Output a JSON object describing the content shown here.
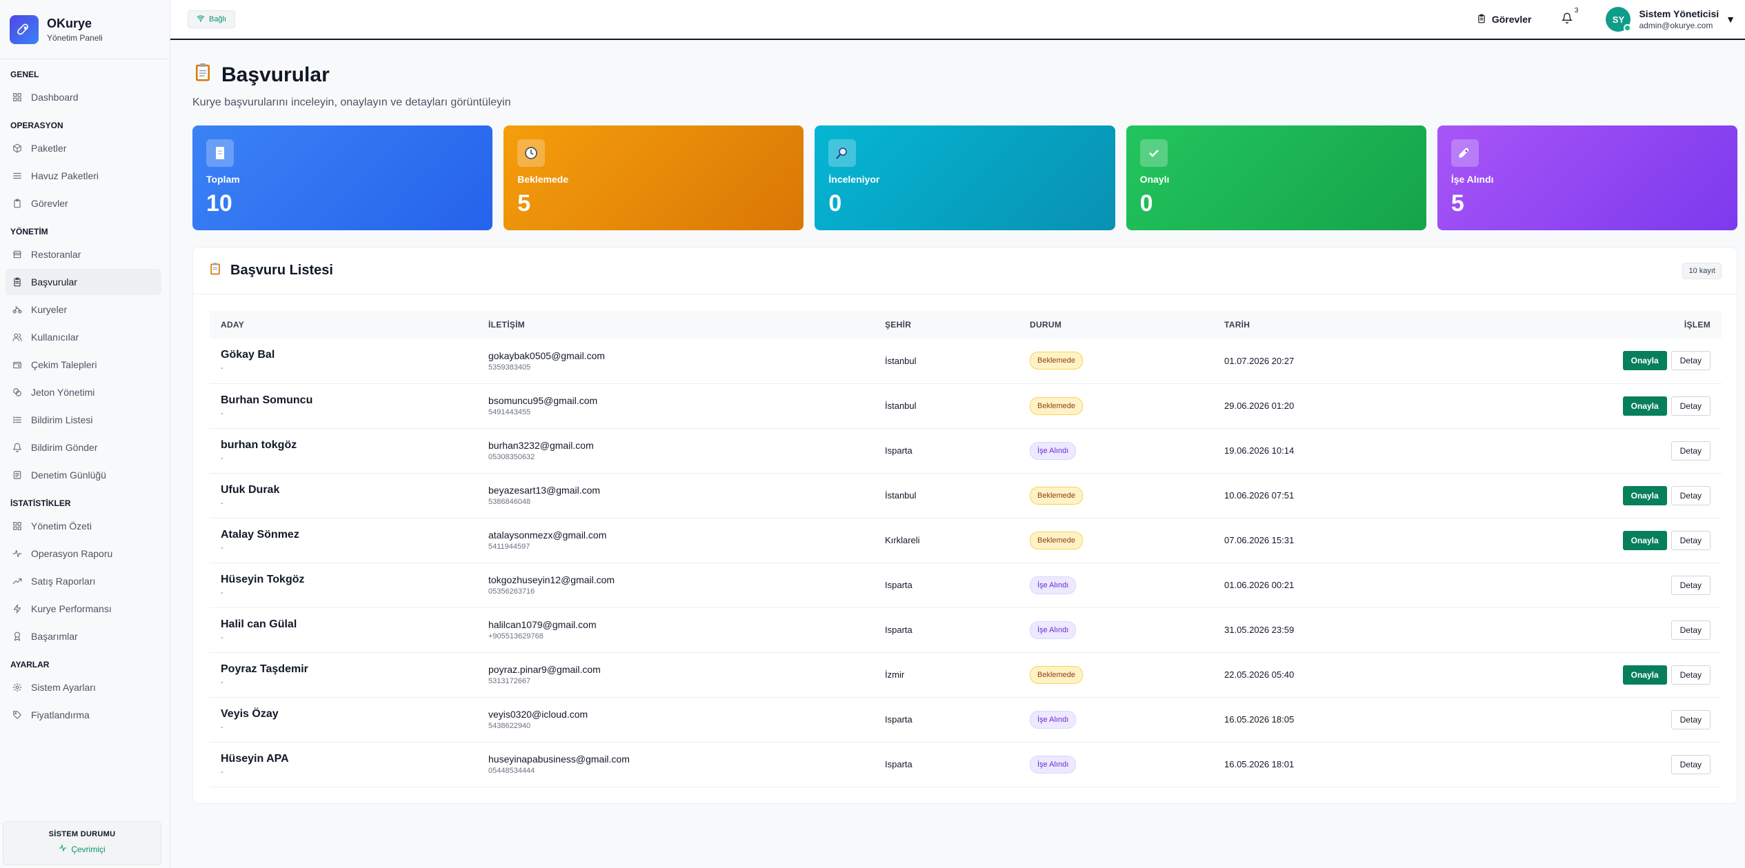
{
  "brand": {
    "name": "OKurye",
    "subtitle": "Yönetim Paneli"
  },
  "sidebar": {
    "sections": [
      {
        "title": "GENEL",
        "items": [
          {
            "label": "Dashboard",
            "icon": "grid-icon"
          }
        ]
      },
      {
        "title": "OPERASYON",
        "items": [
          {
            "label": "Paketler",
            "icon": "package-icon"
          },
          {
            "label": "Havuz Paketleri",
            "icon": "layers-icon"
          },
          {
            "label": "Görevler",
            "icon": "clipboard-icon"
          }
        ]
      },
      {
        "title": "YÖNETİM",
        "items": [
          {
            "label": "Restoranlar",
            "icon": "store-icon"
          },
          {
            "label": "Başvurular",
            "icon": "clipboard-list-icon",
            "active": true
          },
          {
            "label": "Kuryeler",
            "icon": "bike-icon"
          },
          {
            "label": "Kullanıcılar",
            "icon": "users-icon"
          },
          {
            "label": "Çekim Talepleri",
            "icon": "wallet-icon"
          },
          {
            "label": "Jeton Yönetimi",
            "icon": "coins-icon"
          },
          {
            "label": "Bildirim Listesi",
            "icon": "list-icon"
          },
          {
            "label": "Bildirim Gönder",
            "icon": "bell-icon"
          },
          {
            "label": "Denetim Günlüğü",
            "icon": "log-icon"
          }
        ]
      },
      {
        "title": "İSTATİSTİKLER",
        "items": [
          {
            "label": "Yönetim Özeti",
            "icon": "grid-icon"
          },
          {
            "label": "Operasyon Raporu",
            "icon": "activity-icon"
          },
          {
            "label": "Satış Raporları",
            "icon": "trending-up-icon"
          },
          {
            "label": "Kurye Performansı",
            "icon": "zap-icon"
          },
          {
            "label": "Başarımlar",
            "icon": "award-icon"
          }
        ]
      },
      {
        "title": "AYARLAR",
        "items": [
          {
            "label": "Sistem Ayarları",
            "icon": "gear-icon"
          },
          {
            "label": "Fiyatlandırma",
            "icon": "tag-icon"
          }
        ]
      }
    ],
    "status_title": "SİSTEM DURUMU",
    "status_value": "Çevrimiçi"
  },
  "topbar": {
    "connection": "Bağlı",
    "tasks_label": "Görevler",
    "notification_count": "3",
    "avatar_initials": "SY",
    "user_name": "Sistem Yöneticisi",
    "user_email": "admin@okurye.com"
  },
  "page": {
    "title": "Başvurular",
    "subtitle": "Kurye başvurularını inceleyin, onaylayın ve detayları görüntüleyin"
  },
  "stats": [
    {
      "label": "Toplam",
      "value": "10",
      "color_from": "#3b82f6",
      "color_to": "#2563eb",
      "icon": "document-icon"
    },
    {
      "label": "Beklemede",
      "value": "5",
      "color_from": "#f59e0b",
      "color_to": "#d97706",
      "icon": "clock-icon"
    },
    {
      "label": "İnceleniyor",
      "value": "0",
      "color_from": "#06b6d4",
      "color_to": "#0891b2",
      "icon": "magnifier-icon"
    },
    {
      "label": "Onaylı",
      "value": "0",
      "color_from": "#22c55e",
      "color_to": "#16a34a",
      "icon": "check-icon"
    },
    {
      "label": "İşe Alındı",
      "value": "5",
      "color_from": "#a855f7",
      "color_to": "#7c3aed",
      "icon": "rocket-icon"
    }
  ],
  "list": {
    "title": "Başvuru Listesi",
    "count_label": "10 kayıt",
    "columns": [
      "ADAY",
      "İLETİŞİM",
      "ŞEHİR",
      "DURUM",
      "TARİH",
      "İŞLEM"
    ],
    "approve_label": "Onayla",
    "detail_label": "Detay",
    "rows": [
      {
        "name": "Gökay Bal",
        "sub": "-",
        "email": "gokaybak0505@gmail.com",
        "phone": "5359383405",
        "city": "İstanbul",
        "status": "Beklemede",
        "status_type": "pending",
        "date": "01.07.2026 20:27"
      },
      {
        "name": "Burhan Somuncu",
        "sub": "-",
        "email": "bsomuncu95@gmail.com",
        "phone": "5491443455",
        "city": "İstanbul",
        "status": "Beklemede",
        "status_type": "pending",
        "date": "29.06.2026 01:20"
      },
      {
        "name": "burhan tokgöz",
        "sub": "-",
        "email": "burhan3232@gmail.com",
        "phone": "05308350632",
        "city": "Isparta",
        "status": "İşe Alındı",
        "status_type": "hired",
        "date": "19.06.2026 10:14"
      },
      {
        "name": "Ufuk Durak",
        "sub": "-",
        "email": "beyazesart13@gmail.com",
        "phone": "5386846048",
        "city": "İstanbul",
        "status": "Beklemede",
        "status_type": "pending",
        "date": "10.06.2026 07:51"
      },
      {
        "name": "Atalay Sönmez",
        "sub": "-",
        "email": "atalaysonmezx@gmail.com",
        "phone": "5411944597",
        "city": "Kırklareli",
        "status": "Beklemede",
        "status_type": "pending",
        "date": "07.06.2026 15:31"
      },
      {
        "name": "Hüseyin Tokgöz",
        "sub": "-",
        "email": "tokgozhuseyin12@gmail.com",
        "phone": "05356263716",
        "city": "Isparta",
        "status": "İşe Alındı",
        "status_type": "hired",
        "date": "01.06.2026 00:21"
      },
      {
        "name": "Halil can Gülal",
        "sub": "-",
        "email": "halilcan1079@gmail.com",
        "phone": "+905513629768",
        "city": "Isparta",
        "status": "İşe Alındı",
        "status_type": "hired",
        "date": "31.05.2026 23:59"
      },
      {
        "name": "Poyraz Taşdemir",
        "sub": "-",
        "email": "poyraz.pinar9@gmail.com",
        "phone": "5313172667",
        "city": "İzmir",
        "status": "Beklemede",
        "status_type": "pending",
        "date": "22.05.2026 05:40"
      },
      {
        "name": "Veyis Özay",
        "sub": "-",
        "email": "veyis0320@icloud.com",
        "phone": "5438622940",
        "city": "Isparta",
        "status": "İşe Alındı",
        "status_type": "hired",
        "date": "16.05.2026 18:05"
      },
      {
        "name": "Hüseyin APA",
        "sub": "-",
        "email": "huseyinapabusiness@gmail.com",
        "phone": "05448534444",
        "city": "Isparta",
        "status": "İşe Alındı",
        "status_type": "hired",
        "date": "16.05.2026 18:01"
      }
    ]
  }
}
